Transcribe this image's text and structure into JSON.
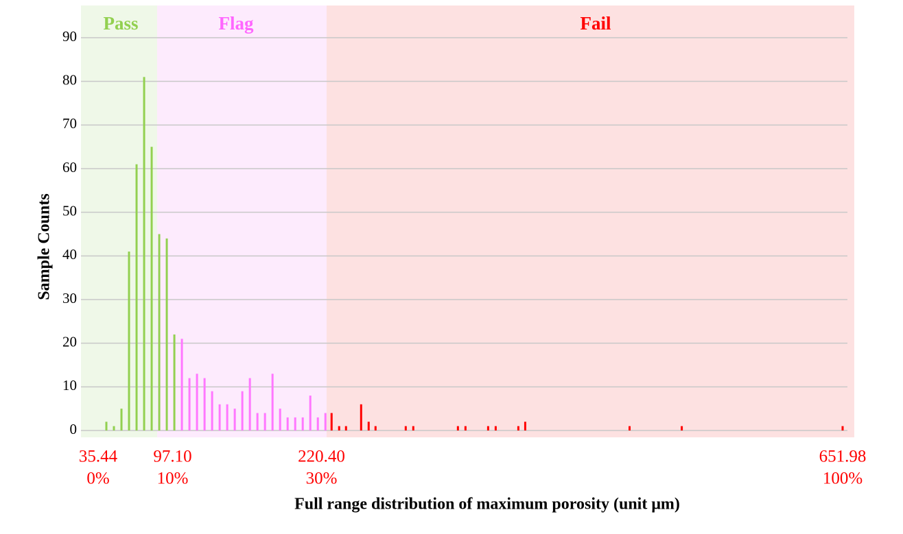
{
  "chart_data": {
    "type": "histogram",
    "xlabel": "Full range distribution of maximum porosity (unit μm)",
    "ylabel": "Sample Counts",
    "xlim": [
      35.44,
      651.98
    ],
    "xticks": [
      {
        "value": 35.44,
        "label": "35.44",
        "sublabel": "0%"
      },
      {
        "value": 97.1,
        "label": "97.10",
        "sublabel": "10%"
      },
      {
        "value": 220.4,
        "label": "220.40",
        "sublabel": "30%"
      },
      {
        "value": 651.98,
        "label": "651.98",
        "sublabel": "100%"
      }
    ],
    "ylim": [
      0,
      90
    ],
    "yticks": [
      0,
      10,
      20,
      30,
      40,
      50,
      60,
      70,
      80,
      90
    ],
    "grid": true,
    "series": [
      {
        "name": "Pass",
        "color": "#92d050",
        "x": [
          42.26,
          48.52,
          54.77,
          61.03,
          67.28,
          73.54,
          79.79,
          86.05,
          92.3,
          98.56
        ],
        "values": [
          2,
          1,
          5,
          41,
          61,
          81,
          65,
          45,
          44,
          22
        ]
      },
      {
        "name": "Flag",
        "color": "#ff77ff",
        "x": [
          104.81,
          111.07,
          117.32,
          123.58,
          129.83,
          136.09,
          142.34,
          148.6,
          154.85,
          161.11,
          167.36,
          173.62,
          179.87,
          186.13,
          192.38,
          198.64,
          204.89,
          211.15,
          217.4,
          223.66
        ],
        "values": [
          21,
          12,
          13,
          12,
          9,
          6,
          6,
          5,
          9,
          12,
          4,
          4,
          13,
          5,
          3,
          3,
          3,
          8,
          3,
          4
        ]
      },
      {
        "name": "Fail",
        "color": "#ff0000",
        "x": [
          228.78,
          235.03,
          240.72,
          253.23,
          259.48,
          265.17,
          290.19,
          296.44,
          333.4,
          339.66,
          358.42,
          364.68,
          383.44,
          389.13,
          475.56,
          518.78,
          651.98
        ],
        "values": [
          4,
          1,
          1,
          6,
          2,
          1,
          1,
          1,
          1,
          1,
          1,
          1,
          1,
          2,
          1,
          1,
          1
        ]
      }
    ]
  }
}
